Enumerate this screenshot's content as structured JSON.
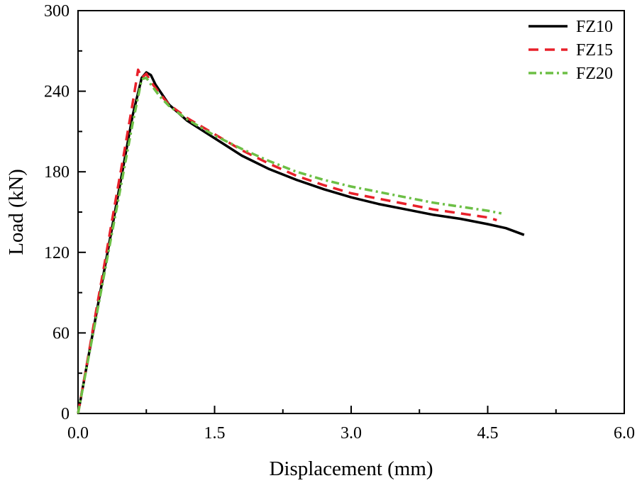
{
  "chart_data": {
    "type": "line",
    "title": "",
    "xlabel": "Displacement (mm)",
    "ylabel": "Load (kN)",
    "xlim": [
      0,
      6
    ],
    "ylim": [
      0,
      300
    ],
    "xticks": [
      0,
      1.5,
      3.0,
      4.5,
      6.0
    ],
    "xtick_labels": [
      "0.0",
      "1.5",
      "3.0",
      "4.5",
      "6.0"
    ],
    "yticks": [
      0,
      60,
      120,
      180,
      240,
      300
    ],
    "ytick_labels": [
      "0",
      "60",
      "120",
      "180",
      "240",
      "300"
    ],
    "grid": false,
    "legend_position": "top-right",
    "series": [
      {
        "name": "FZ10",
        "color": "#000000",
        "dash": "solid",
        "x": [
          0,
          0.1,
          0.2,
          0.3,
          0.4,
          0.5,
          0.6,
          0.7,
          0.75,
          0.8,
          0.85,
          0.9,
          1.0,
          1.2,
          1.5,
          1.8,
          2.1,
          2.4,
          2.7,
          3.0,
          3.3,
          3.6,
          3.9,
          4.2,
          4.5,
          4.7,
          4.9
        ],
        "y": [
          0,
          37,
          74,
          111,
          148,
          185,
          222,
          250,
          254,
          252,
          245,
          240,
          230,
          218,
          205,
          192,
          182,
          174,
          167,
          161,
          156,
          152,
          148,
          145,
          141,
          138,
          133
        ]
      },
      {
        "name": "FZ15",
        "color": "#e8202a",
        "dash": "dashed",
        "x": [
          0,
          0.1,
          0.2,
          0.3,
          0.4,
          0.5,
          0.6,
          0.66,
          0.7,
          0.75,
          0.8,
          0.9,
          1.0,
          1.2,
          1.5,
          1.8,
          2.1,
          2.4,
          2.7,
          3.0,
          3.3,
          3.6,
          3.9,
          4.2,
          4.5,
          4.6
        ],
        "y": [
          0,
          38,
          77,
          115,
          154,
          192,
          231,
          256,
          250,
          253,
          247,
          238,
          230,
          220,
          208,
          196,
          186,
          177,
          170,
          164,
          160,
          156,
          152,
          149,
          146,
          144
        ]
      },
      {
        "name": "FZ20",
        "color": "#6cbf45",
        "dash": "dash-dot",
        "x": [
          0,
          0.1,
          0.2,
          0.3,
          0.4,
          0.5,
          0.6,
          0.7,
          0.75,
          0.8,
          0.9,
          1.0,
          1.2,
          1.5,
          1.8,
          2.1,
          2.4,
          2.7,
          3.0,
          3.3,
          3.6,
          3.9,
          4.2,
          4.5,
          4.65
        ],
        "y": [
          0,
          36,
          72,
          108,
          144,
          180,
          216,
          249,
          250,
          245,
          236,
          229,
          219,
          207,
          197,
          188,
          180,
          174,
          169,
          165,
          161,
          157,
          154,
          151,
          149
        ]
      }
    ]
  }
}
